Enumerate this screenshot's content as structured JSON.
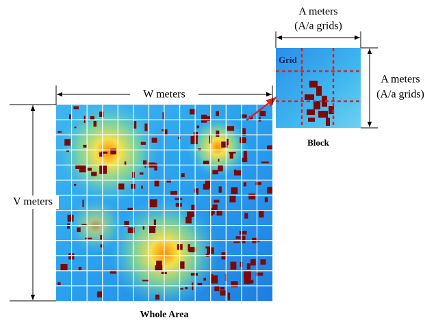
{
  "block": {
    "width_label": "A meters",
    "width_sub": "(A/a grids)",
    "height_label": "A meters",
    "height_sub": "(A/a grids)",
    "grid_label": "Grid",
    "caption": "Block"
  },
  "whole_area": {
    "width_label": "W meters",
    "height_label": "V meters",
    "caption": "Whole Area"
  }
}
